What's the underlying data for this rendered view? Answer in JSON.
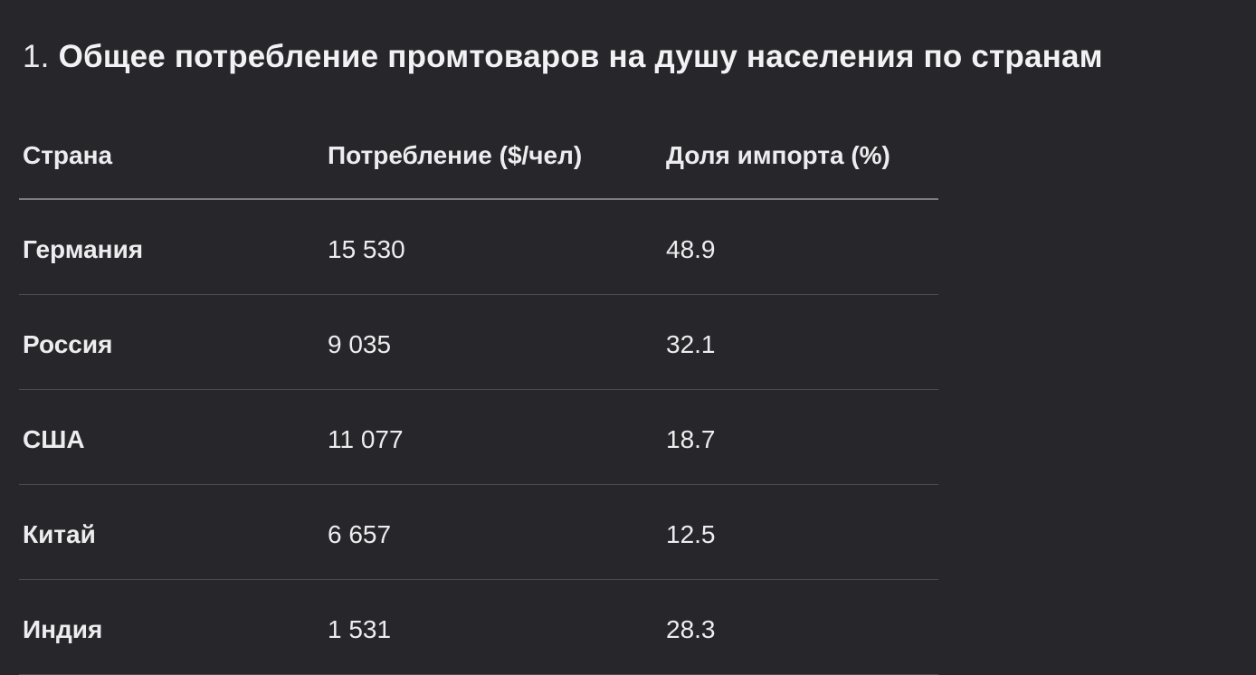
{
  "page": {
    "background_color": "#27272b",
    "text_color": "#ededef",
    "header_rule_color": "#7b7b82",
    "row_rule_color": "#4b4b51"
  },
  "title": {
    "prefix": "1.",
    "text": "Общее потребление промтоваров на душу населения по странам"
  },
  "table": {
    "columns": [
      "Страна",
      "Потребление ($/чел)",
      "Доля импорта (%)"
    ],
    "rows": [
      {
        "country": "Германия",
        "consumption": "15 530",
        "import_share": "48.9"
      },
      {
        "country": "Россия",
        "consumption": "9 035",
        "import_share": "32.1"
      },
      {
        "country": "США",
        "consumption": "11 077",
        "import_share": "18.7"
      },
      {
        "country": "Китай",
        "consumption": "6 657",
        "import_share": "12.5"
      },
      {
        "country": "Индия",
        "consumption": "1 531",
        "import_share": "28.3"
      }
    ]
  },
  "chart_data": {
    "type": "table",
    "title": "1. Общее потребление промтоваров на душу населения по странам",
    "columns": [
      "Страна",
      "Потребление ($/чел)",
      "Доля импорта (%)"
    ],
    "rows": [
      [
        "Германия",
        "15 530",
        "48.9"
      ],
      [
        "Россия",
        "9 035",
        "32.1"
      ],
      [
        "США",
        "11 077",
        "18.7"
      ],
      [
        "Китай",
        "6 657",
        "12.5"
      ],
      [
        "Индия",
        "1 531",
        "28.3"
      ]
    ],
    "series": [
      {
        "name": "Потребление ($/чел)",
        "values": [
          15530,
          9035,
          11077,
          6657,
          1531
        ]
      },
      {
        "name": "Доля импорта (%)",
        "values": [
          48.9,
          32.1,
          18.7,
          12.5,
          28.3
        ]
      }
    ],
    "categories": [
      "Германия",
      "Россия",
      "США",
      "Китай",
      "Индия"
    ]
  }
}
